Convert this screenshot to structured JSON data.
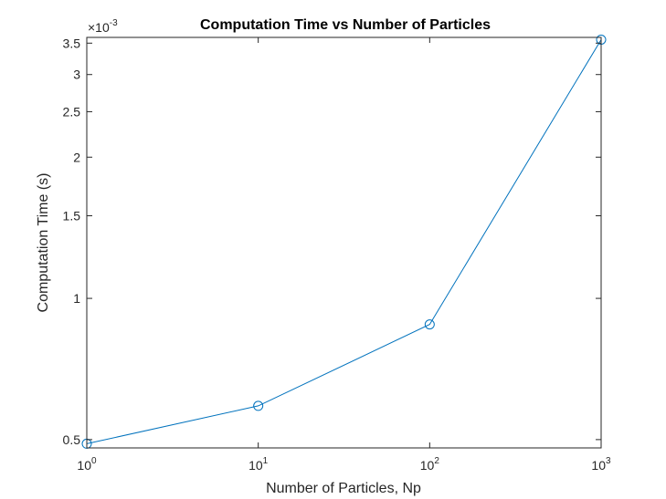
{
  "chart_data": {
    "type": "line",
    "title": "Computation Time vs Number of Particles",
    "xlabel": "Number of Particles, Np",
    "ylabel": "Computation Time (s)",
    "x_scale": "log",
    "y_scale": "log",
    "xlim": [
      1,
      1000
    ],
    "ylim": [
      0.00048,
      0.0036
    ],
    "y_exponent_label": "×10",
    "y_exponent_power": "-3",
    "x_ticks": [
      {
        "value": 1,
        "base": "10",
        "power": "0"
      },
      {
        "value": 10,
        "base": "10",
        "power": "1"
      },
      {
        "value": 100,
        "base": "10",
        "power": "2"
      },
      {
        "value": 1000,
        "base": "10",
        "power": "3"
      }
    ],
    "y_ticks": [
      {
        "value": 0.0005,
        "label": "0.5"
      },
      {
        "value": 0.001,
        "label": "1"
      },
      {
        "value": 0.0015,
        "label": "1.5"
      },
      {
        "value": 0.002,
        "label": "2"
      },
      {
        "value": 0.0025,
        "label": "2.5"
      },
      {
        "value": 0.003,
        "label": "3"
      },
      {
        "value": 0.0035,
        "label": "3.5"
      }
    ],
    "series": [
      {
        "color": "#0072bd",
        "marker": "circle",
        "x": [
          1,
          10,
          100,
          1000
        ],
        "y": [
          0.00049,
          0.00059,
          0.00088,
          0.00356
        ]
      }
    ],
    "grid": false,
    "box": true
  }
}
